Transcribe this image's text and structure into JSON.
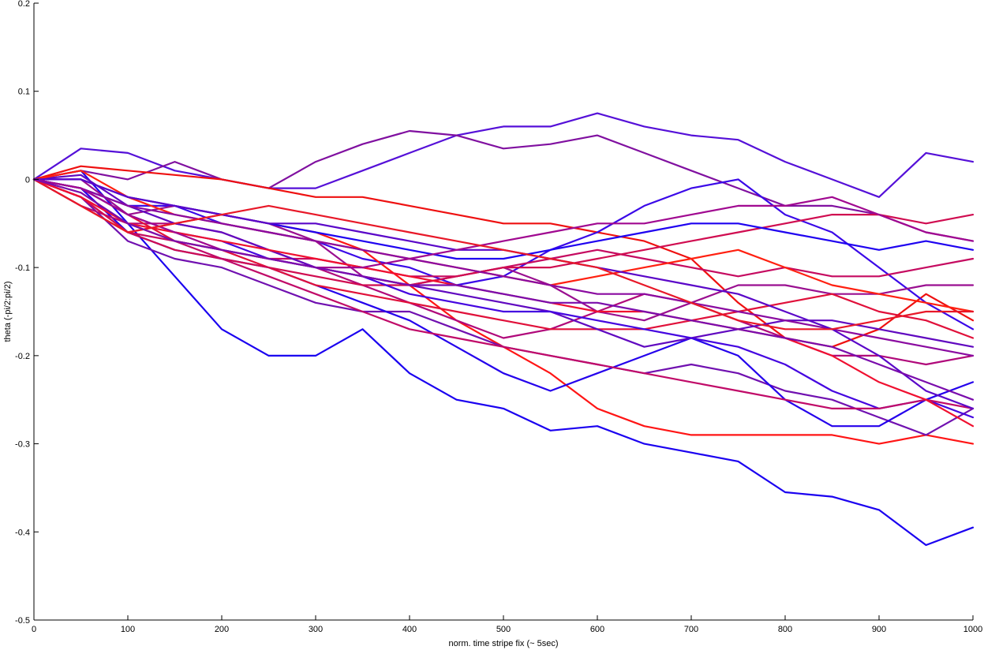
{
  "chart_data": {
    "type": "line",
    "title": "",
    "xlabel": "norm. time stripe fix (~ 5sec)",
    "ylabel": "theta (-pi/2:pi/2)",
    "xlim": [
      0,
      1000
    ],
    "ylim": [
      -0.5,
      0.2
    ],
    "x_ticks": [
      0,
      100,
      200,
      300,
      400,
      500,
      600,
      700,
      800,
      900,
      1000
    ],
    "y_ticks": [
      0.2,
      0.1,
      0,
      -0.1,
      -0.2,
      -0.3,
      -0.4,
      -0.5
    ],
    "x_tick_labels": [
      "0",
      "100",
      "200",
      "300",
      "400",
      "500",
      "600",
      "700",
      "800",
      "900",
      "1000"
    ],
    "y_tick_labels": [
      "0.2",
      "0.1",
      "0",
      "-0.1",
      "-0.2",
      "-0.3",
      "-0.4",
      "-0.5"
    ],
    "grid": false,
    "legend": "none",
    "x": [
      0,
      50,
      100,
      150,
      200,
      250,
      300,
      350,
      400,
      450,
      500,
      550,
      600,
      650,
      700,
      750,
      800,
      850,
      900,
      950,
      1000
    ],
    "series": [
      {
        "color": "#1a00f0",
        "values": [
          0,
          0.01,
          -0.05,
          -0.11,
          -0.17,
          -0.2,
          -0.2,
          -0.17,
          -0.22,
          -0.25,
          -0.26,
          -0.285,
          -0.28,
          -0.3,
          -0.31,
          -0.32,
          -0.355,
          -0.36,
          -0.375,
          -0.415,
          -0.395
        ]
      },
      {
        "color": "#5510d8",
        "values": [
          0,
          0.035,
          0.03,
          0.01,
          0.0,
          -0.01,
          -0.01,
          0.01,
          0.03,
          0.05,
          0.06,
          0.06,
          0.075,
          0.06,
          0.05,
          0.045,
          0.02,
          0.0,
          -0.02,
          0.03,
          0.02
        ]
      },
      {
        "color": "#8010a0",
        "values": [
          0,
          0.01,
          0.0,
          0.02,
          0.0,
          -0.01,
          0.02,
          0.04,
          0.055,
          0.05,
          0.035,
          0.04,
          0.05,
          0.03,
          0.01,
          -0.01,
          -0.03,
          -0.03,
          -0.04,
          -0.06,
          -0.07
        ]
      },
      {
        "color": "#ee1010",
        "values": [
          0,
          0.015,
          0.01,
          0.005,
          0.0,
          -0.01,
          -0.02,
          -0.02,
          -0.03,
          -0.04,
          -0.05,
          -0.05,
          -0.06,
          -0.07,
          -0.09,
          -0.14,
          -0.18,
          -0.19,
          -0.17,
          -0.13,
          -0.16
        ]
      },
      {
        "color": "#3a08e8",
        "values": [
          0,
          -0.01,
          -0.03,
          -0.03,
          -0.05,
          -0.06,
          -0.07,
          -0.09,
          -0.1,
          -0.12,
          -0.11,
          -0.08,
          -0.06,
          -0.03,
          -0.01,
          0.0,
          -0.04,
          -0.06,
          -0.1,
          -0.14,
          -0.17
        ]
      },
      {
        "color": "#9a0f90",
        "values": [
          0,
          0.0,
          -0.04,
          -0.03,
          -0.04,
          -0.05,
          -0.07,
          -0.11,
          -0.12,
          -0.11,
          -0.1,
          -0.12,
          -0.15,
          -0.16,
          -0.14,
          -0.12,
          -0.12,
          -0.13,
          -0.13,
          -0.12,
          -0.12
        ]
      },
      {
        "color": "#c50a60",
        "values": [
          0,
          -0.02,
          -0.06,
          -0.07,
          -0.08,
          -0.09,
          -0.09,
          -0.1,
          -0.11,
          -0.11,
          -0.1,
          -0.09,
          -0.08,
          -0.09,
          -0.1,
          -0.11,
          -0.1,
          -0.11,
          -0.11,
          -0.1,
          -0.09
        ]
      },
      {
        "color": "#ff1515",
        "values": [
          0,
          -0.03,
          -0.06,
          -0.05,
          -0.04,
          -0.05,
          -0.06,
          -0.08,
          -0.12,
          -0.16,
          -0.19,
          -0.22,
          -0.26,
          -0.28,
          -0.29,
          -0.29,
          -0.29,
          -0.29,
          -0.3,
          -0.29,
          -0.3
        ]
      },
      {
        "color": "#7010b0",
        "values": [
          0,
          -0.02,
          -0.07,
          -0.09,
          -0.1,
          -0.12,
          -0.14,
          -0.15,
          -0.15,
          -0.17,
          -0.19,
          -0.2,
          -0.21,
          -0.22,
          -0.21,
          -0.22,
          -0.24,
          -0.25,
          -0.27,
          -0.29,
          -0.26
        ]
      },
      {
        "color": "#2400ec",
        "values": [
          0,
          -0.01,
          -0.06,
          -0.08,
          -0.09,
          -0.1,
          -0.12,
          -0.14,
          -0.16,
          -0.19,
          -0.22,
          -0.24,
          -0.22,
          -0.2,
          -0.18,
          -0.2,
          -0.25,
          -0.28,
          -0.28,
          -0.25,
          -0.23
        ]
      },
      {
        "color": "#b0087a",
        "values": [
          0,
          -0.03,
          -0.05,
          -0.05,
          -0.06,
          -0.08,
          -0.1,
          -0.12,
          -0.14,
          -0.16,
          -0.18,
          -0.17,
          -0.15,
          -0.13,
          -0.14,
          -0.16,
          -0.18,
          -0.2,
          -0.2,
          -0.21,
          -0.2
        ]
      },
      {
        "color": "#e0103a",
        "values": [
          0,
          -0.01,
          -0.04,
          -0.07,
          -0.08,
          -0.1,
          -0.12,
          -0.13,
          -0.14,
          -0.15,
          -0.16,
          -0.17,
          -0.17,
          -0.17,
          -0.16,
          -0.15,
          -0.14,
          -0.13,
          -0.15,
          -0.16,
          -0.18
        ]
      },
      {
        "color": "#6008c0",
        "values": [
          0,
          0.005,
          -0.03,
          -0.05,
          -0.06,
          -0.08,
          -0.1,
          -0.11,
          -0.12,
          -0.13,
          -0.14,
          -0.15,
          -0.17,
          -0.19,
          -0.18,
          -0.17,
          -0.16,
          -0.16,
          -0.17,
          -0.18,
          -0.19
        ]
      },
      {
        "color": "#d00c50",
        "values": [
          0,
          -0.02,
          -0.06,
          -0.08,
          -0.09,
          -0.1,
          -0.11,
          -0.12,
          -0.12,
          -0.11,
          -0.1,
          -0.1,
          -0.09,
          -0.08,
          -0.07,
          -0.06,
          -0.05,
          -0.04,
          -0.04,
          -0.05,
          -0.04
        ]
      },
      {
        "color": "#4404e0",
        "values": [
          0,
          -0.01,
          -0.04,
          -0.06,
          -0.07,
          -0.09,
          -0.1,
          -0.11,
          -0.13,
          -0.14,
          -0.15,
          -0.15,
          -0.16,
          -0.17,
          -0.18,
          -0.19,
          -0.21,
          -0.24,
          -0.26,
          -0.25,
          -0.27
        ]
      },
      {
        "color": "#ff2010",
        "values": [
          0,
          0.01,
          -0.02,
          -0.04,
          -0.05,
          -0.06,
          -0.07,
          -0.08,
          -0.09,
          -0.1,
          -0.11,
          -0.12,
          -0.11,
          -0.1,
          -0.09,
          -0.08,
          -0.1,
          -0.12,
          -0.13,
          -0.14,
          -0.15
        ]
      },
      {
        "color": "#8a0aa0",
        "values": [
          0,
          -0.01,
          -0.03,
          -0.04,
          -0.05,
          -0.06,
          -0.07,
          -0.08,
          -0.09,
          -0.1,
          -0.11,
          -0.12,
          -0.13,
          -0.13,
          -0.14,
          -0.15,
          -0.16,
          -0.17,
          -0.18,
          -0.19,
          -0.2
        ]
      },
      {
        "color": "#1e02f0",
        "values": [
          0,
          0.0,
          -0.02,
          -0.03,
          -0.04,
          -0.05,
          -0.06,
          -0.07,
          -0.08,
          -0.09,
          -0.09,
          -0.08,
          -0.07,
          -0.06,
          -0.05,
          -0.05,
          -0.06,
          -0.07,
          -0.08,
          -0.07,
          -0.08
        ]
      },
      {
        "color": "#c00a68",
        "values": [
          0,
          -0.02,
          -0.05,
          -0.07,
          -0.09,
          -0.11,
          -0.13,
          -0.15,
          -0.17,
          -0.18,
          -0.19,
          -0.2,
          -0.21,
          -0.22,
          -0.23,
          -0.24,
          -0.25,
          -0.26,
          -0.26,
          -0.25,
          -0.26
        ]
      },
      {
        "color": "#f01030",
        "values": [
          0,
          -0.02,
          -0.05,
          -0.06,
          -0.07,
          -0.08,
          -0.09,
          -0.1,
          -0.11,
          -0.12,
          -0.13,
          -0.14,
          -0.15,
          -0.15,
          -0.16,
          -0.17,
          -0.18,
          -0.2,
          -0.23,
          -0.25,
          -0.28
        ]
      },
      {
        "color": "#5a06c8",
        "values": [
          0,
          0.0,
          -0.02,
          -0.03,
          -0.04,
          -0.05,
          -0.05,
          -0.06,
          -0.07,
          -0.08,
          -0.08,
          -0.09,
          -0.1,
          -0.11,
          -0.12,
          -0.13,
          -0.15,
          -0.17,
          -0.2,
          -0.24,
          -0.26
        ]
      },
      {
        "color": "#a00890",
        "values": [
          0,
          -0.01,
          -0.04,
          -0.06,
          -0.08,
          -0.09,
          -0.1,
          -0.1,
          -0.09,
          -0.08,
          -0.07,
          -0.06,
          -0.05,
          -0.05,
          -0.04,
          -0.03,
          -0.03,
          -0.02,
          -0.04,
          -0.06,
          -0.07
        ]
      },
      {
        "color": "#e81828",
        "values": [
          0,
          -0.03,
          -0.06,
          -0.05,
          -0.04,
          -0.03,
          -0.04,
          -0.05,
          -0.06,
          -0.07,
          -0.08,
          -0.09,
          -0.1,
          -0.12,
          -0.14,
          -0.16,
          -0.17,
          -0.17,
          -0.16,
          -0.15,
          -0.15
        ]
      },
      {
        "color": "#7a0cac",
        "values": [
          0,
          -0.015,
          -0.05,
          -0.07,
          -0.08,
          -0.09,
          -0.1,
          -0.11,
          -0.12,
          -0.12,
          -0.13,
          -0.14,
          -0.14,
          -0.15,
          -0.16,
          -0.17,
          -0.18,
          -0.19,
          -0.21,
          -0.23,
          -0.25
        ]
      }
    ]
  }
}
